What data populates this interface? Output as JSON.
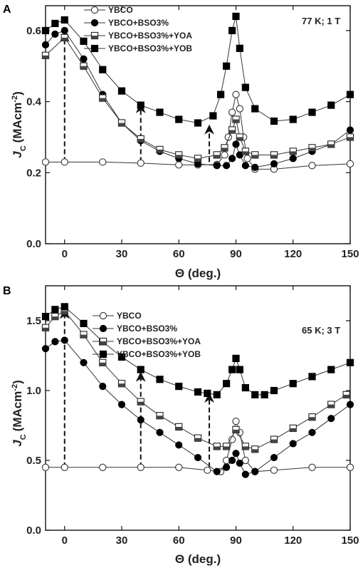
{
  "figure": {
    "xlabel": "Θ (deg.)",
    "ylabel_main": "J",
    "ylabel_sub": "C",
    "ylabel_unit": "(MAcm",
    "ylabel_exp": "-2",
    "ylabel_close": ")"
  },
  "chart_data": [
    {
      "type": "scatter",
      "panel_label": "A",
      "condition": "77 K; 1 T",
      "xlim": [
        -10,
        150
      ],
      "ylim": [
        0,
        0.67
      ],
      "xticks": [
        0,
        30,
        60,
        90,
        120,
        150
      ],
      "yticks": [
        0.0,
        0.2,
        0.4,
        0.6
      ],
      "ytick_labels": [
        "0.0",
        "0.2",
        "0.4",
        "0.6"
      ],
      "legend_position": "top-left",
      "series": [
        {
          "name": "YBCO",
          "marker": "open-circle",
          "x": [
            -10,
            0,
            20,
            40,
            60,
            70,
            80,
            84,
            86,
            88,
            90,
            92,
            94,
            96,
            100,
            110,
            130,
            150
          ],
          "y": [
            0.23,
            0.23,
            0.23,
            0.227,
            0.222,
            0.222,
            0.223,
            0.25,
            0.3,
            0.37,
            0.42,
            0.38,
            0.3,
            0.24,
            0.21,
            0.21,
            0.22,
            0.225
          ]
        },
        {
          "name": "YBCO+BSO3%",
          "marker": "filled-circle",
          "x": [
            -10,
            -5,
            0,
            10,
            20,
            30,
            40,
            50,
            60,
            70,
            80,
            85,
            88,
            90,
            92,
            95,
            100,
            110,
            120,
            130,
            140,
            150
          ],
          "y": [
            0.56,
            0.59,
            0.6,
            0.52,
            0.42,
            0.34,
            0.29,
            0.26,
            0.24,
            0.225,
            0.22,
            0.22,
            0.24,
            0.28,
            0.25,
            0.22,
            0.215,
            0.225,
            0.24,
            0.26,
            0.28,
            0.32
          ]
        },
        {
          "name": "YBCO+BSO3%+YOA",
          "marker": "half-square",
          "x": [
            -10,
            0,
            10,
            20,
            30,
            40,
            50,
            60,
            70,
            80,
            84,
            88,
            90,
            92,
            95,
            100,
            110,
            120,
            130,
            140,
            150
          ],
          "y": [
            0.53,
            0.58,
            0.5,
            0.41,
            0.34,
            0.295,
            0.265,
            0.25,
            0.24,
            0.25,
            0.27,
            0.32,
            0.35,
            0.3,
            0.26,
            0.25,
            0.25,
            0.26,
            0.27,
            0.28,
            0.3
          ]
        },
        {
          "name": "YBCO+BSO3%+YOB",
          "marker": "filled-square",
          "x": [
            -10,
            -5,
            0,
            10,
            20,
            30,
            40,
            50,
            60,
            70,
            78,
            82,
            85,
            88,
            90,
            92,
            95,
            100,
            110,
            120,
            130,
            140,
            150
          ],
          "y": [
            0.6,
            0.62,
            0.63,
            0.57,
            0.49,
            0.43,
            0.39,
            0.37,
            0.35,
            0.34,
            0.36,
            0.42,
            0.5,
            0.6,
            0.64,
            0.55,
            0.44,
            0.38,
            0.345,
            0.35,
            0.37,
            0.39,
            0.42
          ]
        }
      ],
      "arrows": [
        {
          "x": 0,
          "from": 0.23,
          "to": 0.59
        },
        {
          "x": 40,
          "from": 0.23,
          "to": 0.39
        },
        {
          "x": 76,
          "from": 0.23,
          "to": 0.33
        }
      ]
    },
    {
      "type": "scatter",
      "panel_label": "B",
      "condition": "65 K; 3 T",
      "xlim": [
        -10,
        150
      ],
      "ylim": [
        0,
        1.75
      ],
      "xticks": [
        0,
        30,
        60,
        90,
        120,
        150
      ],
      "yticks": [
        0.0,
        0.5,
        1.0,
        1.5
      ],
      "ytick_labels": [
        "0.0",
        "0.5",
        "1.0",
        "1.5"
      ],
      "legend_position": "top-center",
      "series": [
        {
          "name": "YBCO",
          "marker": "open-circle",
          "x": [
            -10,
            0,
            20,
            40,
            60,
            75,
            82,
            85,
            88,
            90,
            92,
            95,
            100,
            110,
            130,
            150
          ],
          "y": [
            0.45,
            0.45,
            0.45,
            0.45,
            0.45,
            0.43,
            0.42,
            0.5,
            0.65,
            0.78,
            0.7,
            0.5,
            0.42,
            0.43,
            0.45,
            0.45
          ]
        },
        {
          "name": "YBCO+BSO3%",
          "marker": "filled-circle",
          "x": [
            -10,
            -5,
            0,
            10,
            20,
            30,
            40,
            50,
            60,
            70,
            80,
            85,
            88,
            90,
            92,
            95,
            100,
            110,
            120,
            130,
            140,
            150
          ],
          "y": [
            1.3,
            1.35,
            1.36,
            1.2,
            1.03,
            0.9,
            0.79,
            0.7,
            0.61,
            0.52,
            0.42,
            0.45,
            0.5,
            0.55,
            0.48,
            0.4,
            0.42,
            0.52,
            0.62,
            0.7,
            0.8,
            0.9
          ]
        },
        {
          "name": "YBCO+BSO3%+YOA",
          "marker": "half-square",
          "x": [
            -10,
            -5,
            0,
            10,
            20,
            30,
            40,
            50,
            60,
            70,
            80,
            85,
            90,
            95,
            100,
            110,
            120,
            130,
            140,
            148
          ],
          "y": [
            1.45,
            1.53,
            1.57,
            1.4,
            1.2,
            1.05,
            0.92,
            0.82,
            0.74,
            0.66,
            0.6,
            0.6,
            0.72,
            0.6,
            0.58,
            0.65,
            0.73,
            0.81,
            0.9,
            0.97
          ]
        },
        {
          "name": "YBCO+BSO3%+YOB",
          "marker": "filled-square",
          "x": [
            -10,
            -5,
            0,
            10,
            20,
            30,
            40,
            50,
            60,
            70,
            75,
            80,
            85,
            88,
            90,
            92,
            95,
            100,
            105,
            110,
            120,
            130,
            140,
            150
          ],
          "y": [
            1.53,
            1.58,
            1.6,
            1.48,
            1.35,
            1.24,
            1.15,
            1.08,
            1.03,
            0.99,
            0.98,
            0.97,
            1.05,
            1.15,
            1.23,
            1.15,
            1.02,
            0.97,
            0.97,
            1.0,
            1.05,
            1.1,
            1.15,
            1.2
          ]
        }
      ],
      "arrows": [
        {
          "x": 0,
          "from": 0.45,
          "to": 1.57
        },
        {
          "x": 40,
          "from": 0.45,
          "to": 1.12
        },
        {
          "x": 76,
          "from": 0.45,
          "to": 0.97
        }
      ]
    }
  ]
}
